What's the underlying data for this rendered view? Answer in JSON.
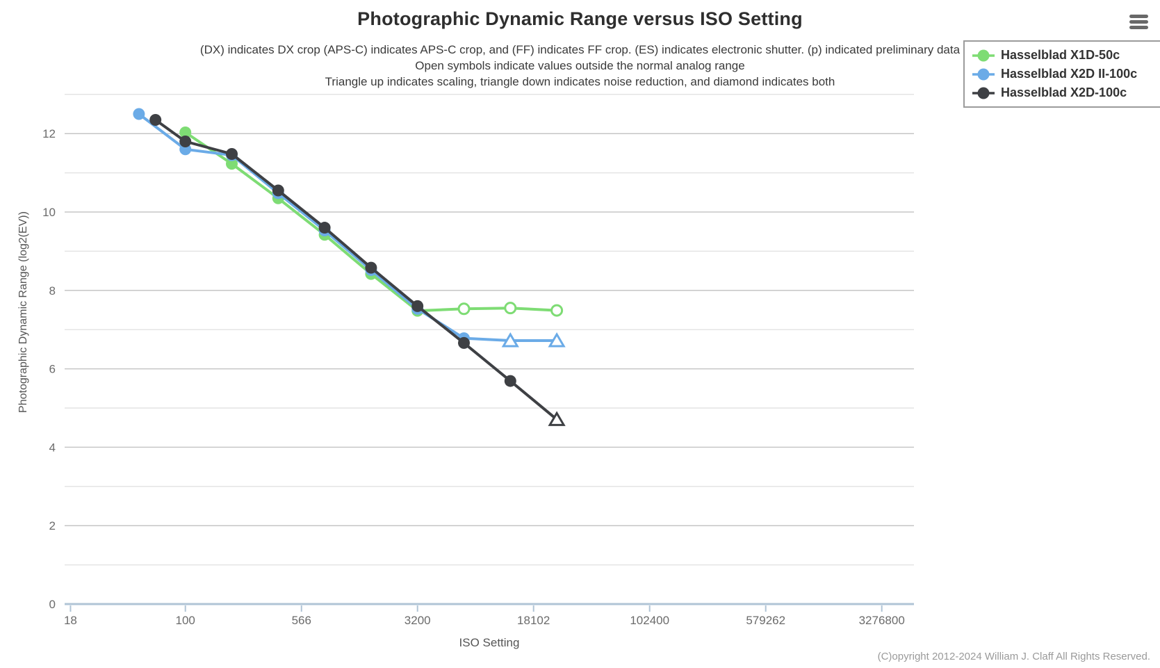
{
  "header": {
    "title": "Photographic Dynamic Range versus ISO Setting",
    "subtitles": [
      "(DX) indicates DX crop (APS-C) indicates APS-C crop, and (FF) indicates FF crop. (ES) indicates electronic shutter. (p) indicated preliminary data",
      "Open symbols indicate values outside the normal analog range",
      "Triangle up indicates scaling, triangle down indicates noise reduction, and diamond indicates both"
    ]
  },
  "menu_icon": "hamburger-menu",
  "page": {
    "copyright": "(C)opyright 2012-2024 William J. Claff All Rights Reserved."
  },
  "chart_data": {
    "type": "line",
    "title": "Photographic Dynamic Range versus ISO Setting",
    "xlabel": "ISO Setting",
    "ylabel": "Photographic Dynamic Range (log2(EV))",
    "x_scale": "log2",
    "x_ticks": [
      18,
      100,
      566,
      3200,
      18102,
      102400,
      579262,
      3276800
    ],
    "y_ticks": [
      0,
      2,
      4,
      6,
      8,
      10,
      12
    ],
    "ylim": [
      0,
      13
    ],
    "grid": "horizontal every 1 EV",
    "legend_position": "top-right",
    "colors": {
      "axis_line": "#b0c4d6",
      "grid_major": "#c6c6c6",
      "grid_minor": "#e4e4e4",
      "tick_label": "#6b6b6b"
    },
    "series": [
      {
        "name": "Hasselblad X1D-50c",
        "color": "#7edc74",
        "points": [
          {
            "iso": 100,
            "pdr": 12.03,
            "marker": "circle"
          },
          {
            "iso": 200,
            "pdr": 11.23,
            "marker": "circle"
          },
          {
            "iso": 400,
            "pdr": 10.35,
            "marker": "circle"
          },
          {
            "iso": 800,
            "pdr": 9.42,
            "marker": "circle"
          },
          {
            "iso": 1600,
            "pdr": 8.42,
            "marker": "circle"
          },
          {
            "iso": 3200,
            "pdr": 7.48,
            "marker": "circle"
          },
          {
            "iso": 6400,
            "pdr": 7.53,
            "marker": "circle-open"
          },
          {
            "iso": 12800,
            "pdr": 7.55,
            "marker": "circle-open"
          },
          {
            "iso": 25600,
            "pdr": 7.49,
            "marker": "circle-open"
          }
        ]
      },
      {
        "name": "Hasselblad X2D II-100c",
        "color": "#6babe7",
        "points": [
          {
            "iso": 50,
            "pdr": 12.5,
            "marker": "circle"
          },
          {
            "iso": 100,
            "pdr": 11.6,
            "marker": "circle"
          },
          {
            "iso": 200,
            "pdr": 11.45,
            "marker": "circle"
          },
          {
            "iso": 400,
            "pdr": 10.48,
            "marker": "circle"
          },
          {
            "iso": 800,
            "pdr": 9.53,
            "marker": "circle"
          },
          {
            "iso": 1600,
            "pdr": 8.52,
            "marker": "circle"
          },
          {
            "iso": 3200,
            "pdr": 7.53,
            "marker": "circle"
          },
          {
            "iso": 6400,
            "pdr": 6.78,
            "marker": "circle"
          },
          {
            "iso": 12800,
            "pdr": 6.72,
            "marker": "triangle-open"
          },
          {
            "iso": 25600,
            "pdr": 6.72,
            "marker": "triangle-open"
          }
        ]
      },
      {
        "name": "Hasselblad X2D-100c",
        "color": "#3e4044",
        "points": [
          {
            "iso": 64,
            "pdr": 12.35,
            "marker": "circle"
          },
          {
            "iso": 100,
            "pdr": 11.8,
            "marker": "circle"
          },
          {
            "iso": 200,
            "pdr": 11.48,
            "marker": "circle"
          },
          {
            "iso": 400,
            "pdr": 10.55,
            "marker": "circle"
          },
          {
            "iso": 800,
            "pdr": 9.6,
            "marker": "circle"
          },
          {
            "iso": 1600,
            "pdr": 8.58,
            "marker": "circle"
          },
          {
            "iso": 3200,
            "pdr": 7.6,
            "marker": "circle"
          },
          {
            "iso": 6400,
            "pdr": 6.66,
            "marker": "circle"
          },
          {
            "iso": 12800,
            "pdr": 5.69,
            "marker": "circle"
          },
          {
            "iso": 25600,
            "pdr": 4.71,
            "marker": "triangle-open"
          }
        ]
      }
    ]
  }
}
